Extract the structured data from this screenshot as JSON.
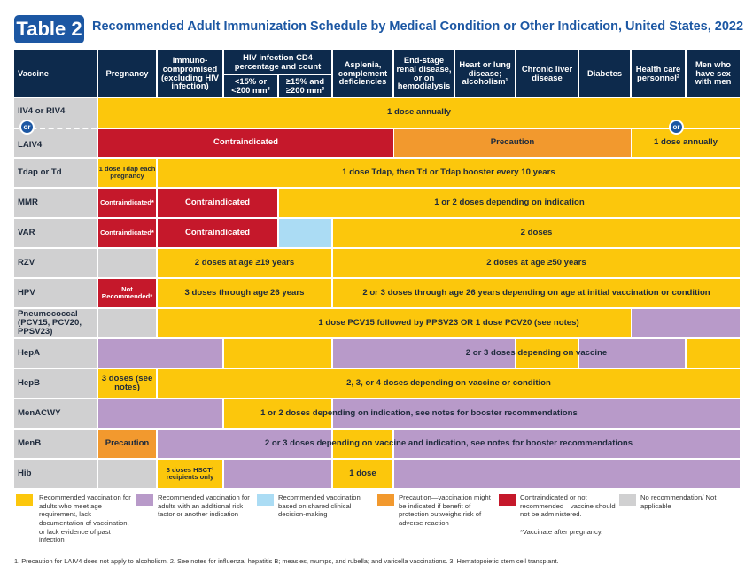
{
  "header": {
    "badge": "Table 2",
    "title": "Recommended Adult Immunization Schedule by Medical Condition or Other Indication, United States, 2022"
  },
  "columns": {
    "vaccine": "Vaccine",
    "pregnancy": "Pregnancy",
    "immuno": "Immuno-compromised (excluding HIV infection)",
    "hiv_group": "HIV infection CD4 percentage and count",
    "hiv_low": "<15% or <200 mm³",
    "hiv_high": "≥15% and ≥200 mm³",
    "asplenia": "Asplenia, complement deficiencies",
    "renal": "End-stage renal disease, or on hemodialysis",
    "heart": "Heart or lung disease; alcoholism¹",
    "liver": "Chronic liver disease",
    "diabetes": "Diabetes",
    "hcp": "Health care personnel²",
    "msm": "Men who have sex with men"
  },
  "rows": {
    "iiv": {
      "name": "IIV4 or RIV4",
      "s1": "1 dose annually"
    },
    "or": "or",
    "laiv": {
      "name": "LAIV4",
      "s1": "Contraindicated",
      "s2": "Precaution",
      "s3": "1 dose annually"
    },
    "tdap": {
      "name": "Tdap or Td",
      "s1": "1 dose Tdap each pregnancy",
      "s2": "1 dose Tdap, then Td or Tdap booster every 10 years"
    },
    "mmr": {
      "name": "MMR",
      "s1": "Contraindicated*",
      "s2": "Contraindicated",
      "s3": "1 or 2 doses depending on indication"
    },
    "var": {
      "name": "VAR",
      "s1": "Contraindicated*",
      "s2": "Contraindicated",
      "s3": "2 doses"
    },
    "rzv": {
      "name": "RZV",
      "s1": "2 doses at age ≥19 years",
      "s2": "2 doses at age ≥50 years"
    },
    "hpv": {
      "name": "HPV",
      "s1": "Not Recommended*",
      "s2": "3 doses through age 26 years",
      "s3": "2 or 3 doses through age 26 years depending on age at initial vaccination or condition"
    },
    "pneumo": {
      "name": "Pneumococcal (PCV15, PCV20, PPSV23)",
      "s1": "1 dose PCV15 followed by PPSV23 OR 1 dose PCV20 (see notes)"
    },
    "hepa": {
      "name": "HepA",
      "s1": "2 or 3 doses depending on vaccine"
    },
    "hepb": {
      "name": "HepB",
      "s1": "3 doses (see notes)",
      "s2": "2, 3, or 4 doses depending on vaccine or condition"
    },
    "menacwy": {
      "name": "MenACWY",
      "s1": "1 or 2 doses depending on indication, see notes for booster recommendations"
    },
    "menb": {
      "name": "MenB",
      "s1": "Precaution",
      "s2": "2 or 3 doses depending on vaccine and indication, see notes for booster recommendations"
    },
    "hib": {
      "name": "Hib",
      "s1": "3 doses HSCT³ recipients only",
      "s2": "1 dose"
    }
  },
  "legend": {
    "yellow": "Recommended vaccination for adults who meet age requirement, lack documentation of vaccination, or lack evidence of past infection",
    "purple": "Recommended vaccination for adults with an additional risk factor or another indication",
    "blue": "Recommended vaccination based on shared clinical decision-making",
    "orange": "Precaution—vaccination might be indicated if benefit of protection outweighs risk of adverse reaction",
    "red": "Contraindicated or not recommended—vaccine should not be administered.",
    "red_note": "*Vaccinate after pregnancy.",
    "gray": "No recommendation/ Not applicable"
  },
  "colors": {
    "yellow": "#fcc70c",
    "purple": "#b89ac9",
    "blue": "#abdcf4",
    "orange": "#f2992e",
    "red": "#c5182b",
    "gray": "#d0d0d1",
    "navy": "#0d2a4c",
    "brand": "#1c57a3"
  },
  "footnote": "1. Precaution for LAIV4 does not apply to alcoholism. 2. See notes for influenza; hepatitis B; measles, mumps, and rubella; and varicella vaccinations. 3. Hematopoietic stem cell transplant."
}
